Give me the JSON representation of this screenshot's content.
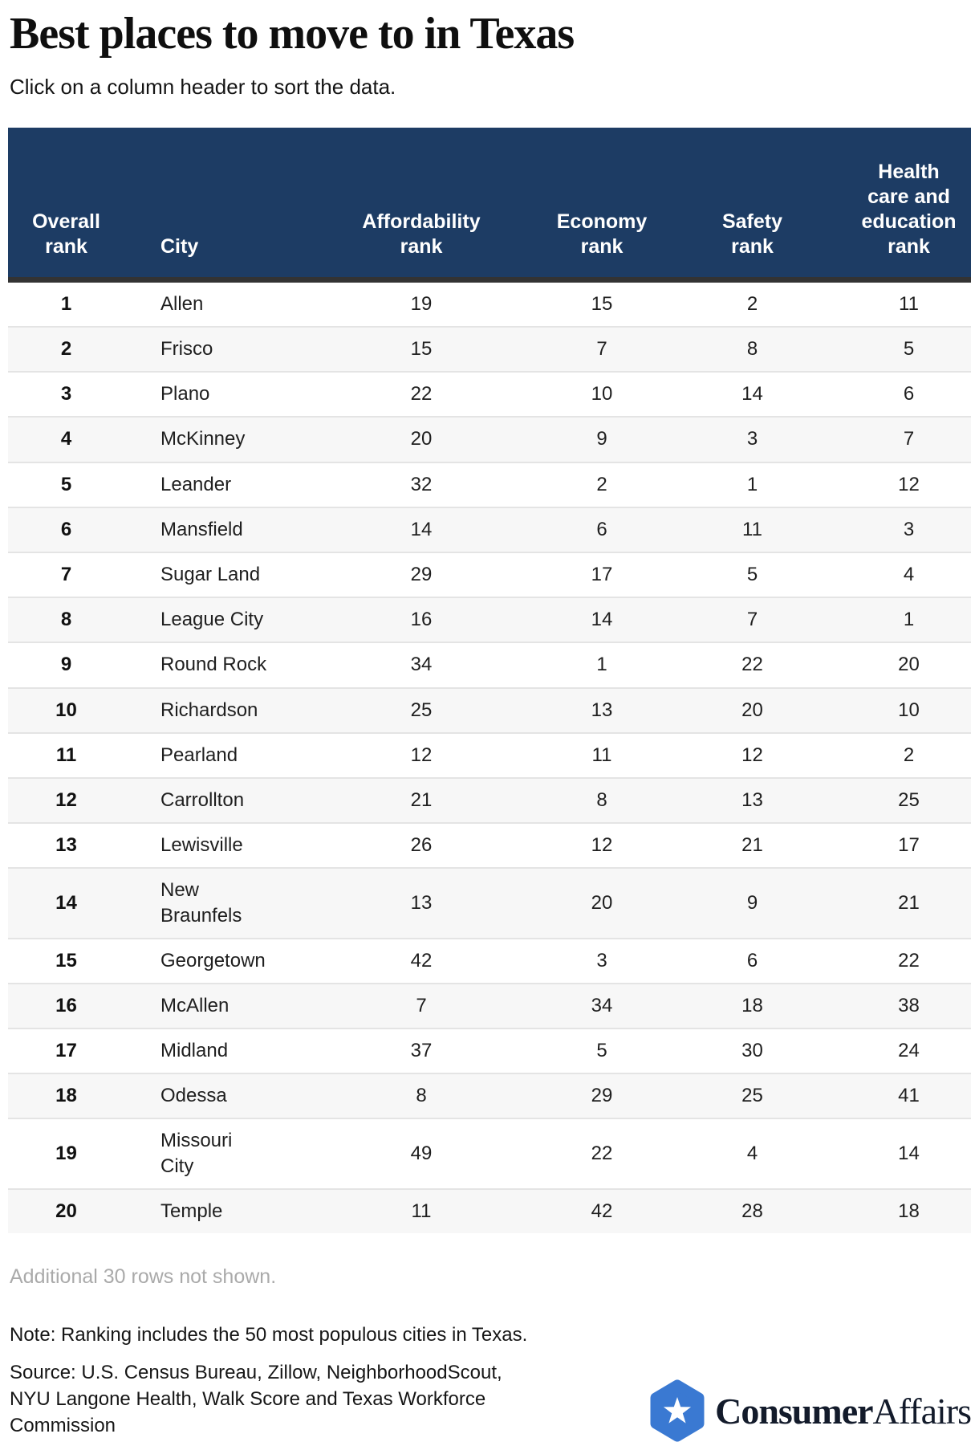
{
  "header": {
    "title": "Best places to move to in Texas",
    "subtitle": "Click on a column header to sort the data."
  },
  "table": {
    "columns": [
      {
        "id": "overall_rank",
        "label": "Overall\nrank"
      },
      {
        "id": "city",
        "label": "City"
      },
      {
        "id": "affordability_rank",
        "label": "Affordability\nrank"
      },
      {
        "id": "economy_rank",
        "label": "Economy\nrank"
      },
      {
        "id": "safety_rank",
        "label": "Safety\nrank"
      },
      {
        "id": "health_education_rank",
        "label": "Health\ncare and\neducation\nrank"
      }
    ],
    "rows": [
      [
        "1",
        "Allen",
        "19",
        "15",
        "2",
        "11"
      ],
      [
        "2",
        "Frisco",
        "15",
        "7",
        "8",
        "5"
      ],
      [
        "3",
        "Plano",
        "22",
        "10",
        "14",
        "6"
      ],
      [
        "4",
        "McKinney",
        "20",
        "9",
        "3",
        "7"
      ],
      [
        "5",
        "Leander",
        "32",
        "2",
        "1",
        "12"
      ],
      [
        "6",
        "Mansfield",
        "14",
        "6",
        "11",
        "3"
      ],
      [
        "7",
        "Sugar Land",
        "29",
        "17",
        "5",
        "4"
      ],
      [
        "8",
        "League City",
        "16",
        "14",
        "7",
        "1"
      ],
      [
        "9",
        "Round Rock",
        "34",
        "1",
        "22",
        "20"
      ],
      [
        "10",
        "Richardson",
        "25",
        "13",
        "20",
        "10"
      ],
      [
        "11",
        "Pearland",
        "12",
        "11",
        "12",
        "2"
      ],
      [
        "12",
        "Carrollton",
        "21",
        "8",
        "13",
        "25"
      ],
      [
        "13",
        "Lewisville",
        "26",
        "12",
        "21",
        "17"
      ],
      [
        "14",
        "New\nBraunfels",
        "13",
        "20",
        "9",
        "21"
      ],
      [
        "15",
        "Georgetown",
        "42",
        "3",
        "6",
        "22"
      ],
      [
        "16",
        "McAllen",
        "7",
        "34",
        "18",
        "38"
      ],
      [
        "17",
        "Midland",
        "37",
        "5",
        "30",
        "24"
      ],
      [
        "18",
        "Odessa",
        "8",
        "29",
        "25",
        "41"
      ],
      [
        "19",
        "Missouri\nCity",
        "49",
        "22",
        "4",
        "14"
      ],
      [
        "20",
        "Temple",
        "11",
        "42",
        "28",
        "18"
      ]
    ],
    "truncation_note": "Additional 30 rows not shown."
  },
  "footer": {
    "note": "Note: Ranking includes the 50 most populous cities in Texas.",
    "source": "Source: U.S. Census Bureau, Zillow, NeighborhoodScout, NYU Langone Health, Walk Score and Texas Workforce Commission",
    "brand": {
      "badge_icon": "star-badge-icon",
      "name_bold": "Consumer",
      "name_regular": "Affairs"
    }
  },
  "colors": {
    "header_bg": "#1d3c64",
    "header_text": "#ffffff",
    "header_border": "#333333",
    "zebra_row": "#f7f7f7",
    "row_border": "#e4e4e4",
    "muted_text": "#aaaaaa",
    "brand_blue": "#3a79d2",
    "brand_text": "#131b2b"
  },
  "chart_data": {
    "type": "table",
    "title": "Best places to move to in Texas",
    "subtitle": "Click on a column header to sort the data.",
    "columns": [
      "Overall rank",
      "City",
      "Affordability rank",
      "Economy rank",
      "Safety rank",
      "Health care and education rank"
    ],
    "rows": [
      [
        1,
        "Allen",
        19,
        15,
        2,
        11
      ],
      [
        2,
        "Frisco",
        15,
        7,
        8,
        5
      ],
      [
        3,
        "Plano",
        22,
        10,
        14,
        6
      ],
      [
        4,
        "McKinney",
        20,
        9,
        3,
        7
      ],
      [
        5,
        "Leander",
        32,
        2,
        1,
        12
      ],
      [
        6,
        "Mansfield",
        14,
        6,
        11,
        3
      ],
      [
        7,
        "Sugar Land",
        29,
        17,
        5,
        4
      ],
      [
        8,
        "League City",
        16,
        14,
        7,
        1
      ],
      [
        9,
        "Round Rock",
        34,
        1,
        22,
        20
      ],
      [
        10,
        "Richardson",
        25,
        13,
        20,
        10
      ],
      [
        11,
        "Pearland",
        12,
        11,
        12,
        2
      ],
      [
        12,
        "Carrollton",
        21,
        8,
        13,
        25
      ],
      [
        13,
        "Lewisville",
        26,
        12,
        21,
        17
      ],
      [
        14,
        "New Braunfels",
        13,
        20,
        9,
        21
      ],
      [
        15,
        "Georgetown",
        42,
        3,
        6,
        22
      ],
      [
        16,
        "McAllen",
        7,
        34,
        18,
        38
      ],
      [
        17,
        "Midland",
        37,
        5,
        30,
        24
      ],
      [
        18,
        "Odessa",
        8,
        29,
        25,
        41
      ],
      [
        19,
        "Missouri City",
        49,
        22,
        4,
        14
      ],
      [
        20,
        "Temple",
        11,
        42,
        28,
        18
      ]
    ],
    "notes": [
      "Additional 30 rows not shown.",
      "Note: Ranking includes the 50 most populous cities in Texas.",
      "Source: U.S. Census Bureau, Zillow, NeighborhoodScout, NYU Langone Health, Walk Score and Texas Workforce Commission"
    ],
    "layout": {
      "zebra_striping": true,
      "sortable_headers": true
    }
  }
}
